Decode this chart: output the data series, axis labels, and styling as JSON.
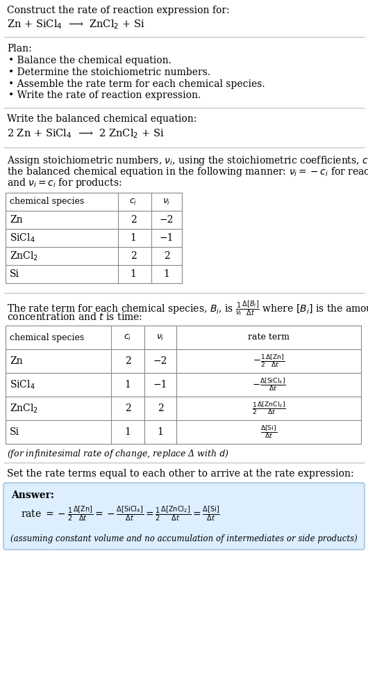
{
  "bg_color": "#ffffff",
  "text_color": "#000000",
  "answer_box_color": "#ddeeff",
  "answer_box_edge": "#99bbdd",
  "title_text": "Construct the rate of reaction expression for:",
  "reaction_unbalanced": "Zn + SiCl$_4$  ⟶  ZnCl$_2$ + Si",
  "plan_header": "Plan:",
  "plan_items": [
    "• Balance the chemical equation.",
    "• Determine the stoichiometric numbers.",
    "• Assemble the rate term for each chemical species.",
    "• Write the rate of reaction expression."
  ],
  "balanced_header": "Write the balanced chemical equation:",
  "balanced_eq": "2 Zn + SiCl$_4$  ⟶  2 ZnCl$_2$ + Si",
  "assign_header_parts": [
    "Assign stoichiometric numbers, $\\nu_i$, using the stoichiometric coefficients, $c_i$, from",
    "the balanced chemical equation in the following manner: $\\nu_i = -c_i$ for reactants",
    "and $\\nu_i = c_i$ for products:"
  ],
  "table1_headers": [
    "chemical species",
    "$c_i$",
    "$\\nu_i$"
  ],
  "table1_rows": [
    [
      "Zn",
      "2",
      "−2"
    ],
    [
      "SiCl$_4$",
      "1",
      "−1"
    ],
    [
      "ZnCl$_2$",
      "2",
      "2"
    ],
    [
      "Si",
      "1",
      "1"
    ]
  ],
  "rate_header_parts": [
    "The rate term for each chemical species, $B_i$, is $\\frac{1}{\\nu_i}\\frac{\\Delta[B_i]}{\\Delta t}$ where $[B_i]$ is the amount",
    "concentration and $t$ is time:"
  ],
  "table2_headers": [
    "chemical species",
    "$c_i$",
    "$\\nu_i$",
    "rate term"
  ],
  "table2_rows": [
    [
      "Zn",
      "2",
      "−2",
      "$-\\frac{1}{2}\\frac{\\Delta[\\mathrm{Zn}]}{\\Delta t}$"
    ],
    [
      "SiCl$_4$",
      "1",
      "−1",
      "$-\\frac{\\Delta[\\mathrm{SiCl_4}]}{\\Delta t}$"
    ],
    [
      "ZnCl$_2$",
      "2",
      "2",
      "$\\frac{1}{2}\\frac{\\Delta[\\mathrm{ZnCl_2}]}{\\Delta t}$"
    ],
    [
      "Si",
      "1",
      "1",
      "$\\frac{\\Delta[\\mathrm{Si}]}{\\Delta t}$"
    ]
  ],
  "infinitesimal_note": "(for infinitesimal rate of change, replace Δ with $d$)",
  "set_equal_header": "Set the rate terms equal to each other to arrive at the rate expression:",
  "answer_label": "Answer:",
  "rate_expression": "rate $= -\\frac{1}{2}\\frac{\\Delta[\\mathrm{Zn}]}{\\Delta t} = -\\frac{\\Delta[\\mathrm{SiCl_4}]}{\\Delta t} = \\frac{1}{2}\\frac{\\Delta[\\mathrm{ZnCl_2}]}{\\Delta t} = \\frac{\\Delta[\\mathrm{Si}]}{\\Delta t}$",
  "assuming_note": "(assuming constant volume and no accumulation of intermediates or side products)"
}
